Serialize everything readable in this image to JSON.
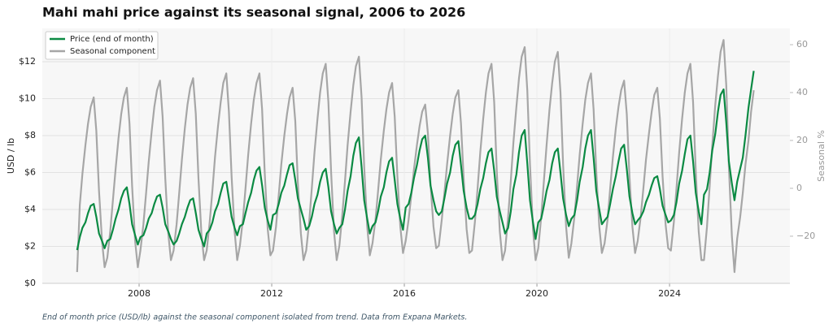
{
  "chart_data": {
    "type": "line",
    "title": "Mahi mahi price against its seasonal signal, 2006 to 2026",
    "caption": "End of month price (USD/lb) against the seasonal component isolated from trend. Data from Expana Markets.",
    "ylabel": "USD / lb",
    "y2label": "Seasonal %",
    "xlim": [
      2005.08,
      2027.63
    ],
    "xticks": [
      2008,
      2012,
      2016,
      2020,
      2024
    ],
    "ylim": [
      0,
      13.8
    ],
    "yticks": [
      {
        "value": 0,
        "label": "$0"
      },
      {
        "value": 2,
        "label": "$2"
      },
      {
        "value": 4,
        "label": "$4"
      },
      {
        "value": 6,
        "label": "$6"
      },
      {
        "value": 8,
        "label": "$8"
      },
      {
        "value": 10,
        "label": "$10"
      },
      {
        "value": 12,
        "label": "$12"
      }
    ],
    "y2lim": [
      -39.7,
      66.8
    ],
    "y2ticks": [
      {
        "value": -20,
        "label": "−20"
      },
      0,
      20,
      40,
      60
    ],
    "grid": true,
    "legend": "upper left",
    "x": [
      2006.13,
      2006.21,
      2006.29,
      2006.38,
      2006.46,
      2006.54,
      2006.63,
      2006.71,
      2006.79,
      2006.88,
      2006.96,
      2007.04,
      2007.13,
      2007.21,
      2007.29,
      2007.38,
      2007.46,
      2007.54,
      2007.63,
      2007.71,
      2007.79,
      2007.88,
      2007.96,
      2008.04,
      2008.13,
      2008.21,
      2008.29,
      2008.38,
      2008.46,
      2008.54,
      2008.63,
      2008.71,
      2008.79,
      2008.88,
      2008.96,
      2009.04,
      2009.13,
      2009.21,
      2009.29,
      2009.38,
      2009.46,
      2009.54,
      2009.63,
      2009.71,
      2009.79,
      2009.88,
      2009.96,
      2010.04,
      2010.13,
      2010.21,
      2010.29,
      2010.38,
      2010.46,
      2010.54,
      2010.63,
      2010.71,
      2010.79,
      2010.88,
      2010.96,
      2011.04,
      2011.13,
      2011.21,
      2011.29,
      2011.38,
      2011.46,
      2011.54,
      2011.63,
      2011.71,
      2011.79,
      2011.88,
      2011.96,
      2012.04,
      2012.13,
      2012.21,
      2012.29,
      2012.38,
      2012.46,
      2012.54,
      2012.63,
      2012.71,
      2012.79,
      2012.88,
      2012.96,
      2013.04,
      2013.13,
      2013.21,
      2013.29,
      2013.38,
      2013.46,
      2013.54,
      2013.63,
      2013.71,
      2013.79,
      2013.88,
      2013.96,
      2014.04,
      2014.13,
      2014.21,
      2014.29,
      2014.38,
      2014.46,
      2014.54,
      2014.63,
      2014.71,
      2014.79,
      2014.88,
      2014.96,
      2015.04,
      2015.13,
      2015.21,
      2015.29,
      2015.38,
      2015.46,
      2015.54,
      2015.63,
      2015.71,
      2015.79,
      2015.88,
      2015.96,
      2016.04,
      2016.13,
      2016.21,
      2016.29,
      2016.38,
      2016.46,
      2016.54,
      2016.63,
      2016.71,
      2016.79,
      2016.88,
      2016.96,
      2017.04,
      2017.13,
      2017.21,
      2017.29,
      2017.38,
      2017.46,
      2017.54,
      2017.63,
      2017.71,
      2017.79,
      2017.88,
      2017.96,
      2018.04,
      2018.13,
      2018.21,
      2018.29,
      2018.38,
      2018.46,
      2018.54,
      2018.63,
      2018.71,
      2018.79,
      2018.88,
      2018.96,
      2019.04,
      2019.13,
      2019.21,
      2019.29,
      2019.38,
      2019.46,
      2019.54,
      2019.63,
      2019.71,
      2019.79,
      2019.88,
      2019.96,
      2020.04,
      2020.13,
      2020.21,
      2020.29,
      2020.38,
      2020.46,
      2020.54,
      2020.63,
      2020.71,
      2020.79,
      2020.88,
      2020.96,
      2021.04,
      2021.13,
      2021.21,
      2021.29,
      2021.38,
      2021.46,
      2021.54,
      2021.63,
      2021.71,
      2021.79,
      2021.88,
      2021.96,
      2022.04,
      2022.13,
      2022.21,
      2022.29,
      2022.38,
      2022.46,
      2022.54,
      2022.63,
      2022.71,
      2022.79,
      2022.88,
      2022.96,
      2023.04,
      2023.13,
      2023.21,
      2023.29,
      2023.38,
      2023.46,
      2023.54,
      2023.63,
      2023.71,
      2023.79,
      2023.88,
      2023.96,
      2024.04,
      2024.13,
      2024.21,
      2024.29,
      2024.38,
      2024.46,
      2024.54,
      2024.63,
      2024.71,
      2024.79,
      2024.88,
      2024.96,
      2025.04,
      2025.13,
      2025.21,
      2025.29,
      2025.38,
      2025.46,
      2025.54,
      2025.63,
      2025.71,
      2025.79,
      2025.88,
      2025.96,
      2026.04,
      2026.13,
      2026.21,
      2026.29,
      2026.38,
      2026.46,
      2026.54
    ],
    "series": [
      {
        "name": "Price (end of month)",
        "color": "#0b8a43",
        "axis": "y",
        "values": [
          1.8,
          2.5,
          3.0,
          3.3,
          3.8,
          4.2,
          4.3,
          3.6,
          2.7,
          2.3,
          1.9,
          2.3,
          2.4,
          2.9,
          3.5,
          4.0,
          4.6,
          5.0,
          5.2,
          4.3,
          3.2,
          2.6,
          2.1,
          2.5,
          2.6,
          3.0,
          3.5,
          3.8,
          4.3,
          4.7,
          4.8,
          4.1,
          3.2,
          2.8,
          2.4,
          2.1,
          2.3,
          2.7,
          3.2,
          3.6,
          4.1,
          4.5,
          4.6,
          3.8,
          2.9,
          2.4,
          2.0,
          2.7,
          2.9,
          3.3,
          3.9,
          4.3,
          4.9,
          5.4,
          5.5,
          4.6,
          3.6,
          3.0,
          2.6,
          3.1,
          3.2,
          3.8,
          4.4,
          4.9,
          5.6,
          6.1,
          6.3,
          5.3,
          4.1,
          3.4,
          2.9,
          3.7,
          3.8,
          4.3,
          4.9,
          5.3,
          5.9,
          6.4,
          6.5,
          5.6,
          4.6,
          4.0,
          3.5,
          2.9,
          3.1,
          3.6,
          4.3,
          4.8,
          5.5,
          6.0,
          6.2,
          5.2,
          3.9,
          3.2,
          2.7,
          3.0,
          3.2,
          4.0,
          5.0,
          5.8,
          6.9,
          7.6,
          7.9,
          6.3,
          4.5,
          3.5,
          2.7,
          3.1,
          3.3,
          3.9,
          4.7,
          5.2,
          6.0,
          6.6,
          6.8,
          5.6,
          4.3,
          3.5,
          2.9,
          4.1,
          4.3,
          4.9,
          5.7,
          6.4,
          7.2,
          7.8,
          8.0,
          6.8,
          5.3,
          4.5,
          3.9,
          3.7,
          3.9,
          4.6,
          5.4,
          6.0,
          6.9,
          7.5,
          7.7,
          6.4,
          5.0,
          4.1,
          3.5,
          3.5,
          3.7,
          4.3,
          5.1,
          5.7,
          6.5,
          7.1,
          7.3,
          6.1,
          4.7,
          3.9,
          3.3,
          2.7,
          3.0,
          3.9,
          5.1,
          5.9,
          7.1,
          8.0,
          8.3,
          6.5,
          4.5,
          3.3,
          2.4,
          3.3,
          3.5,
          4.2,
          5.0,
          5.6,
          6.5,
          7.1,
          7.3,
          6.0,
          4.6,
          3.7,
          3.1,
          3.5,
          3.7,
          4.5,
          5.5,
          6.3,
          7.3,
          8.0,
          8.3,
          6.8,
          5.0,
          4.0,
          3.2,
          3.4,
          3.6,
          4.3,
          5.1,
          5.8,
          6.6,
          7.3,
          7.5,
          6.2,
          4.7,
          3.8,
          3.2,
          3.4,
          3.6,
          3.9,
          4.4,
          4.8,
          5.3,
          5.7,
          5.8,
          5.1,
          4.2,
          3.7,
          3.3,
          3.4,
          3.7,
          4.4,
          5.4,
          6.1,
          7.0,
          7.8,
          8.0,
          6.6,
          4.9,
          3.9,
          3.2,
          4.8,
          5.1,
          6.0,
          7.2,
          8.1,
          9.3,
          10.2,
          10.5,
          8.7,
          6.6,
          5.4,
          4.5,
          5.5,
          6.2,
          6.8,
          8.0,
          9.5,
          10.5,
          11.5
        ]
      },
      {
        "name": "Seasonal component",
        "color": "#a6a6a6",
        "axis": "y2",
        "values": [
          -35,
          -7,
          6,
          18,
          27,
          34,
          38,
          24,
          -1,
          -22,
          -33,
          -29,
          -18,
          -5,
          8,
          21,
          31,
          38,
          42,
          27,
          1,
          -22,
          -33,
          -26,
          -15,
          -2,
          11,
          24,
          34,
          41,
          45,
          30,
          4,
          -19,
          -30,
          -26,
          -15,
          -2,
          12,
          25,
          35,
          42,
          46,
          31,
          4,
          -19,
          -30,
          -26,
          -14,
          -1,
          13,
          26,
          36,
          44,
          48,
          32,
          5,
          -18,
          -30,
          -24,
          -13,
          0,
          14,
          27,
          37,
          44,
          48,
          33,
          6,
          -17,
          -28,
          -26,
          -16,
          -3,
          10,
          22,
          31,
          38,
          42,
          28,
          2,
          -19,
          -30,
          -26,
          -14,
          0,
          15,
          29,
          40,
          48,
          52,
          36,
          7,
          -18,
          -30,
          -24,
          -11,
          3,
          18,
          32,
          43,
          51,
          55,
          38,
          9,
          -16,
          -28,
          -23,
          -13,
          -1,
          12,
          24,
          33,
          40,
          44,
          30,
          5,
          -16,
          -27,
          -22,
          -13,
          -3,
          8,
          18,
          26,
          32,
          35,
          23,
          2,
          -16,
          -25,
          -24,
          -13,
          -2,
          10,
          22,
          31,
          38,
          41,
          27,
          4,
          -17,
          -27,
          -26,
          -14,
          0,
          15,
          29,
          40,
          48,
          52,
          36,
          7,
          -18,
          -30,
          -26,
          -12,
          3,
          19,
          34,
          46,
          55,
          59,
          41,
          10,
          -17,
          -30,
          -25,
          -12,
          3,
          18,
          33,
          44,
          53,
          57,
          40,
          10,
          -16,
          -29,
          -23,
          -12,
          1,
          14,
          27,
          37,
          44,
          48,
          33,
          7,
          -16,
          -27,
          -23,
          -13,
          0,
          13,
          25,
          34,
          41,
          45,
          31,
          5,
          -16,
          -27,
          -22,
          -12,
          0,
          12,
          23,
          32,
          39,
          42,
          29,
          5,
          -15,
          -25,
          -26,
          -14,
          0,
          15,
          29,
          40,
          48,
          52,
          36,
          7,
          -18,
          -30,
          -30,
          -16,
          1,
          18,
          35,
          47,
          57,
          62,
          43,
          9,
          -20,
          -35,
          -21,
          -12,
          -2,
          10,
          20,
          32,
          41
        ]
      }
    ]
  }
}
